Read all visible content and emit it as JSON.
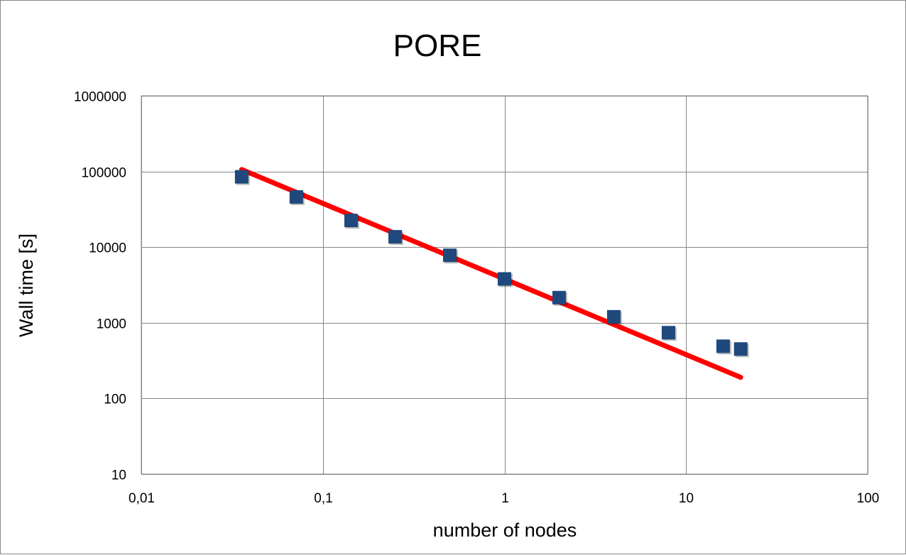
{
  "chart_data": {
    "type": "scatter",
    "title": "PORE",
    "xlabel": "number of nodes",
    "ylabel": "Wall time [s]",
    "xscale": "log",
    "yscale": "log",
    "xlim": [
      0.01,
      100
    ],
    "ylim": [
      10,
      1000000
    ],
    "x_ticks": [
      0.01,
      0.1,
      1,
      10,
      100
    ],
    "x_tick_labels": [
      "0,01",
      "0,1",
      "1",
      "10",
      "100"
    ],
    "y_ticks": [
      10,
      100,
      1000,
      10000,
      100000,
      1000000
    ],
    "y_tick_labels": [
      "10",
      "100",
      "1000",
      "10000",
      "100000",
      "1000000"
    ],
    "grid": true,
    "legend": "none",
    "series": [
      {
        "kind": "points",
        "marker": "square",
        "color": "#1F497D",
        "x": [
          0.0357,
          0.0714,
          0.143,
          0.25,
          0.5,
          1,
          2,
          4,
          8,
          16,
          20
        ],
        "y": [
          85000,
          46000,
          22500,
          13700,
          7800,
          3800,
          2150,
          1200,
          740,
          490,
          450
        ]
      },
      {
        "kind": "trendline",
        "color": "#FF0000",
        "x": [
          0.0357,
          20
        ],
        "y": [
          106000,
          190
        ]
      }
    ]
  }
}
